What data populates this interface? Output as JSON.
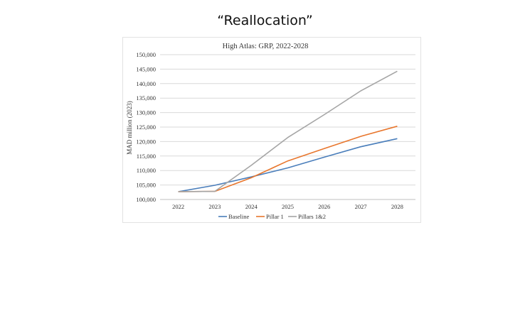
{
  "slide": {
    "title": "“Reallocation”"
  },
  "chart_data": {
    "type": "line",
    "title": "High Atlas: GRP, 2022-2028",
    "xlabel": "",
    "ylabel": "MAD million (2023)",
    "x": [
      "2022",
      "2023",
      "2024",
      "2025",
      "2026",
      "2027",
      "2028"
    ],
    "ylim": [
      100000,
      150000
    ],
    "yticks": [
      100000,
      105000,
      110000,
      115000,
      120000,
      125000,
      130000,
      135000,
      140000,
      145000,
      150000
    ],
    "ytick_labels": [
      "100,000",
      "105,000",
      "110,000",
      "115,000",
      "120,000",
      "125,000",
      "130,000",
      "135,000",
      "140,000",
      "145,000",
      "150,000"
    ],
    "grid": true,
    "legend_position": "bottom",
    "series": [
      {
        "name": "Baseline",
        "color": "#4a7ebb",
        "values": [
          102700,
          104900,
          107800,
          110900,
          114600,
          118200,
          121000
        ]
      },
      {
        "name": "Pillar 1",
        "color": "#e8762d",
        "values": [
          102700,
          102800,
          107500,
          113300,
          117600,
          121800,
          125300
        ]
      },
      {
        "name": "Pillars 1&2",
        "color": "#a5a5a5",
        "values": [
          102700,
          102800,
          111800,
          121400,
          129300,
          137500,
          144300
        ]
      }
    ]
  }
}
